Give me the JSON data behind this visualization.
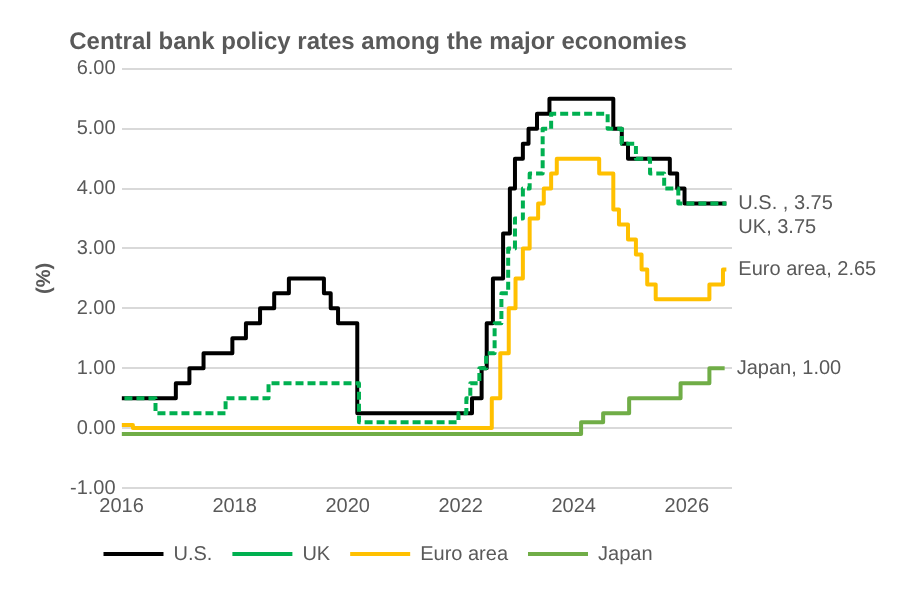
{
  "chart_data": {
    "type": "step",
    "title": "Central bank policy rates among the major economies",
    "ylabel": "(%)",
    "xlim": [
      2016,
      2026.8
    ],
    "xticks": [
      2016,
      2018,
      2020,
      2022,
      2024,
      2026
    ],
    "ylim": [
      -1,
      6
    ],
    "yticks": [
      {
        "value": -1,
        "label": "-1.00"
      },
      {
        "value": 0,
        "label": "0.00"
      },
      {
        "value": 1,
        "label": "1.00"
      },
      {
        "value": 2,
        "label": "2.00"
      },
      {
        "value": 3,
        "label": "3.00"
      },
      {
        "value": 4,
        "label": "4.00"
      },
      {
        "value": 5,
        "label": "5.00"
      },
      {
        "value": 6,
        "label": "6.00"
      }
    ],
    "grid": "y",
    "legend": "bottom",
    "marker": "none",
    "series": [
      {
        "name": "U.S.",
        "color": "#000000",
        "line_style": "solid",
        "x": [
          2016,
          2016.96,
          2017.2,
          2017.45,
          2017.96,
          2018.2,
          2018.45,
          2018.7,
          2018.96,
          2019.58,
          2019.7,
          2019.83,
          2020.17,
          2022.2,
          2022.37,
          2022.46,
          2022.57,
          2022.75,
          2022.87,
          2022.96,
          2023.1,
          2023.2,
          2023.35,
          2023.57,
          2024.7,
          2024.85,
          2024.96,
          2025.7,
          2025.83,
          2025.96,
          2026.7
        ],
        "values": [
          0.5,
          0.75,
          1.0,
          1.25,
          1.5,
          1.75,
          2.0,
          2.25,
          2.5,
          2.25,
          2.0,
          1.75,
          0.25,
          0.5,
          1.0,
          1.75,
          2.5,
          3.25,
          4.0,
          4.5,
          4.75,
          5.0,
          5.25,
          5.5,
          5.0,
          4.75,
          4.5,
          4.25,
          4.0,
          3.75,
          3.75
        ]
      },
      {
        "name": "UK",
        "color": "#00b050",
        "line_style": "dashed",
        "x": [
          2016,
          2016.6,
          2017.84,
          2018.6,
          2020.2,
          2021.96,
          2022.1,
          2022.17,
          2022.33,
          2022.45,
          2022.6,
          2022.72,
          2022.84,
          2022.96,
          2023.1,
          2023.22,
          2023.45,
          2023.6,
          2024.6,
          2024.85,
          2025.1,
          2025.35,
          2025.6,
          2025.85,
          2026.7
        ],
        "values": [
          0.5,
          0.25,
          0.5,
          0.75,
          0.1,
          0.25,
          0.5,
          0.75,
          1.0,
          1.25,
          1.75,
          2.25,
          3.0,
          3.5,
          4.0,
          4.25,
          5.0,
          5.25,
          5.0,
          4.75,
          4.5,
          4.25,
          4.0,
          3.75,
          3.75
        ]
      },
      {
        "name": "Euro area",
        "color": "#ffc000",
        "line_style": "solid",
        "x": [
          2016,
          2016.2,
          2022.55,
          2022.7,
          2022.85,
          2022.97,
          2023.1,
          2023.22,
          2023.37,
          2023.47,
          2023.6,
          2023.7,
          2024.45,
          2024.7,
          2024.8,
          2024.96,
          2025.1,
          2025.2,
          2025.3,
          2025.45,
          2026.4,
          2026.64,
          2026.7
        ],
        "values": [
          0.05,
          0.0,
          0.5,
          1.25,
          2.0,
          2.5,
          3.0,
          3.5,
          3.75,
          4.0,
          4.25,
          4.5,
          4.25,
          3.65,
          3.4,
          3.15,
          2.9,
          2.65,
          2.4,
          2.15,
          2.4,
          2.65,
          2.65
        ]
      },
      {
        "name": "Japan",
        "color": "#70ad47",
        "line_style": "solid",
        "x": [
          2016,
          2024.13,
          2024.52,
          2024.98,
          2025.89,
          2026.4,
          2026.67
        ],
        "values": [
          -0.1,
          0.1,
          0.25,
          0.5,
          0.75,
          1.0,
          1.0
        ]
      }
    ],
    "annotations": [
      "U.S. , 3.75",
      "UK, 3.75",
      "Euro area, 2.65",
      "Japan, 1.00"
    ]
  }
}
